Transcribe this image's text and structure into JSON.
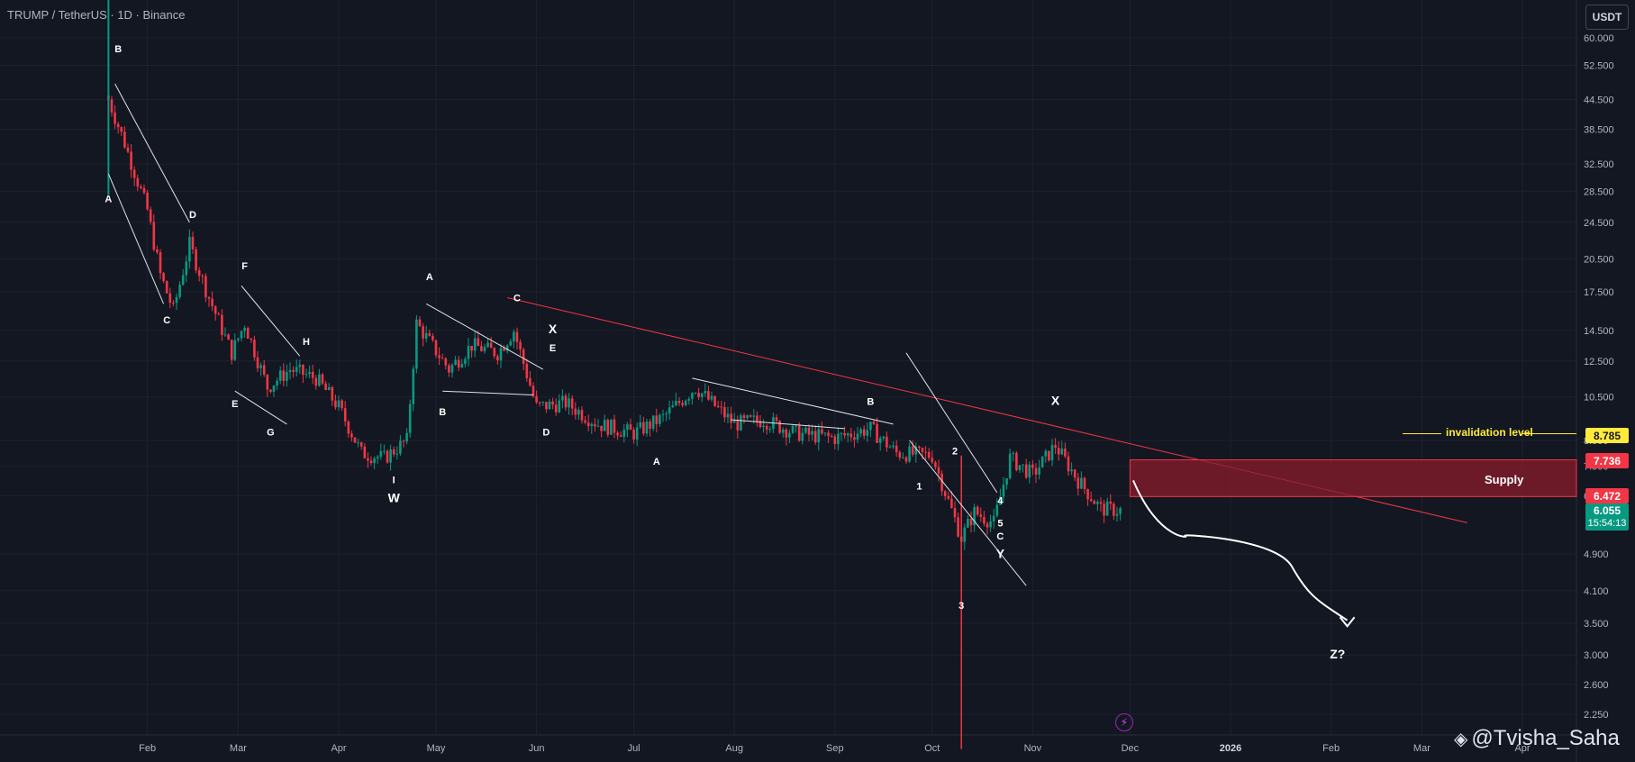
{
  "header": {
    "title": "TRUMP / TetherUS · 1D · Binance"
  },
  "price_axis": {
    "currency_label": "USDT",
    "invalidation_price": "8.785",
    "supply_top": "7.736",
    "supply_bottom": "6.472",
    "current_price": "6.055",
    "countdown": "15:54:13"
  },
  "annotations": {
    "invalidation_label": "invalidation level",
    "supply_label": "Supply",
    "target_label": "Z?"
  },
  "watermark": {
    "text": "@Tvisha_Saha"
  },
  "colors": {
    "background": "#131722",
    "up": "#089981",
    "down": "#f23645",
    "trendline": "#f23645",
    "supply_zone": "#8b1c2b",
    "invalidation": "#ffeb3b"
  },
  "chart_data": {
    "type": "candlestick",
    "symbol": "TRUMP/USDT",
    "timeframe": "1D",
    "exchange": "Binance",
    "y_scale": "log",
    "y_ticks": [
      "60.000",
      "52.500",
      "44.500",
      "38.500",
      "32.500",
      "28.500",
      "24.500",
      "20.500",
      "17.500",
      "14.500",
      "12.500",
      "10.500",
      "8.500",
      "7.500",
      "6.500",
      "4.900",
      "4.100",
      "3.500",
      "3.000",
      "2.600",
      "2.250"
    ],
    "x_ticks": [
      "Feb",
      "Mar",
      "Apr",
      "May",
      "Jun",
      "Jul",
      "Aug",
      "Sep",
      "Oct",
      "Nov",
      "Dec",
      "2026",
      "Feb",
      "Mar",
      "Apr"
    ],
    "last_price": 6.055,
    "supply_zone": [
      6.472,
      7.736
    ],
    "invalidation_level": 8.785,
    "close_series": [
      {
        "date": "2025-01-20",
        "close": 44.5
      },
      {
        "date": "2025-01-25",
        "close": 36.0
      },
      {
        "date": "2025-02-01",
        "close": 26.0
      },
      {
        "date": "2025-02-05",
        "close": 19.0
      },
      {
        "date": "2025-02-09",
        "close": 16.0
      },
      {
        "date": "2025-02-14",
        "close": 22.0
      },
      {
        "date": "2025-02-20",
        "close": 17.0
      },
      {
        "date": "2025-02-27",
        "close": 13.0
      },
      {
        "date": "2025-03-03",
        "close": 15.0
      },
      {
        "date": "2025-03-10",
        "close": 11.0
      },
      {
        "date": "2025-03-17",
        "close": 12.0
      },
      {
        "date": "2025-03-25",
        "close": 11.5
      },
      {
        "date": "2025-04-01",
        "close": 10.0
      },
      {
        "date": "2025-04-08",
        "close": 8.0
      },
      {
        "date": "2025-04-15",
        "close": 7.8
      },
      {
        "date": "2025-04-22",
        "close": 8.5
      },
      {
        "date": "2025-04-25",
        "close": 15.0
      },
      {
        "date": "2025-05-05",
        "close": 12.0
      },
      {
        "date": "2025-05-12",
        "close": 13.5
      },
      {
        "date": "2025-05-20",
        "close": 13.0
      },
      {
        "date": "2025-05-25",
        "close": 14.5
      },
      {
        "date": "2025-06-01",
        "close": 10.0
      },
      {
        "date": "2025-06-10",
        "close": 10.2
      },
      {
        "date": "2025-06-20",
        "close": 9.2
      },
      {
        "date": "2025-07-01",
        "close": 8.8
      },
      {
        "date": "2025-07-10",
        "close": 9.5
      },
      {
        "date": "2025-07-20",
        "close": 11.0
      },
      {
        "date": "2025-08-01",
        "close": 9.2
      },
      {
        "date": "2025-08-10",
        "close": 9.4
      },
      {
        "date": "2025-08-20",
        "close": 8.8
      },
      {
        "date": "2025-09-01",
        "close": 8.6
      },
      {
        "date": "2025-09-12",
        "close": 9.0
      },
      {
        "date": "2025-09-20",
        "close": 8.0
      },
      {
        "date": "2025-10-01",
        "close": 7.9
      },
      {
        "date": "2025-10-10",
        "close": 5.3
      },
      {
        "date": "2025-10-14",
        "close": 6.0
      },
      {
        "date": "2025-10-20",
        "close": 5.7
      },
      {
        "date": "2025-10-25",
        "close": 7.8
      },
      {
        "date": "2025-11-01",
        "close": 7.2
      },
      {
        "date": "2025-11-08",
        "close": 8.3
      },
      {
        "date": "2025-11-15",
        "close": 7.0
      },
      {
        "date": "2025-11-22",
        "close": 6.1
      },
      {
        "date": "2025-11-28",
        "close": 6.055
      }
    ],
    "wave_labels": [
      "A",
      "B",
      "C",
      "D",
      "E",
      "F",
      "G",
      "H",
      "I",
      "W",
      "A",
      "B",
      "C",
      "D",
      "E",
      "X",
      "A",
      "B",
      "1",
      "2",
      "3",
      "4",
      "5",
      "C",
      "Y",
      "X",
      "Z?"
    ],
    "projection": "price path drawn downward from the supply zone toward Z?"
  }
}
